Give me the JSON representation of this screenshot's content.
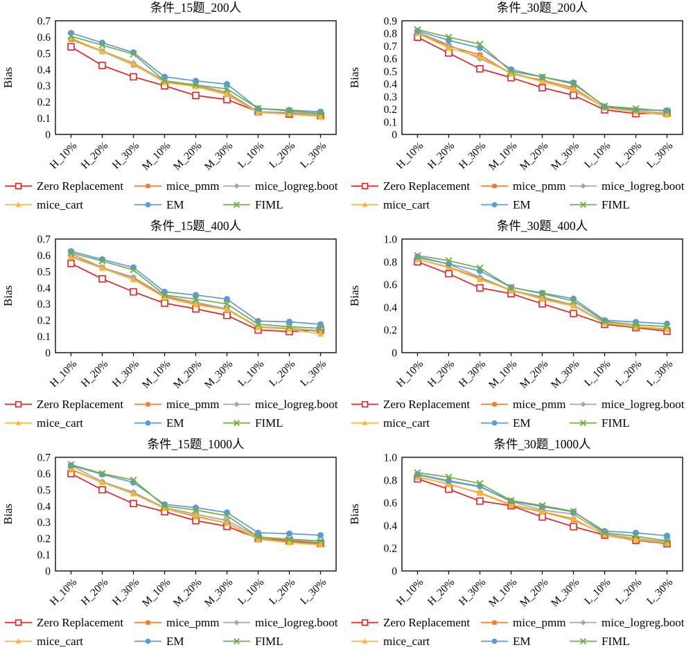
{
  "figure": {
    "ylabel": "Bias"
  },
  "colors": {
    "zero_replacement": "#e32322",
    "mice_pmm": "#ed7d31",
    "mice_logreg_boot": "#a5a5a5",
    "mice_cart": "#f8b830",
    "em": "#5b9bd5",
    "fiml": "#70ad47",
    "axis": "#1a1a1a"
  },
  "legend_items": [
    {
      "key": "zero_replacement",
      "label": "Zero Replacement",
      "marker": "open-square",
      "color": "#e32322"
    },
    {
      "key": "mice_pmm",
      "label": "mice_pmm",
      "marker": "square",
      "color": "#ed7d31"
    },
    {
      "key": "mice_logreg_boot",
      "label": "mice_logreg.boot",
      "marker": "diamond",
      "color": "#a5a5a5"
    },
    {
      "key": "mice_cart",
      "label": "mice_cart",
      "marker": "triangle",
      "color": "#f8b830"
    },
    {
      "key": "em",
      "label": "EM",
      "marker": "circle",
      "color": "#5b9bd5"
    },
    {
      "key": "fiml",
      "label": "FIML",
      "marker": "x",
      "color": "#70ad47"
    }
  ],
  "chart_data": [
    {
      "type": "line",
      "title": "条件_15题_200人",
      "ylabel": "Bias",
      "ylim": [
        0,
        0.7
      ],
      "ytick_labels": [
        "0.7",
        "0.6",
        "0.5",
        "0.4",
        "0.3",
        "0.2",
        "0.1",
        "0"
      ],
      "categories": [
        "H_10%",
        "H_20%",
        "H_30%",
        "M_10%",
        "M_20%",
        "M_30%",
        "L_10%",
        "L_20%",
        "L_30%"
      ],
      "series": [
        {
          "name": "Zero Replacement",
          "key": "zero_replacement",
          "marker": "open-square",
          "values": [
            0.54,
            0.425,
            0.355,
            0.3,
            0.24,
            0.215,
            0.14,
            0.125,
            0.115
          ]
        },
        {
          "name": "mice_pmm",
          "key": "mice_pmm",
          "marker": "square",
          "values": [
            0.585,
            0.51,
            0.43,
            0.325,
            0.3,
            0.25,
            0.135,
            0.13,
            0.115
          ]
        },
        {
          "name": "mice_logreg.boot",
          "key": "mice_logreg_boot",
          "marker": "diamond",
          "values": [
            0.59,
            0.515,
            0.44,
            0.33,
            0.305,
            0.26,
            0.14,
            0.135,
            0.125
          ]
        },
        {
          "name": "mice_cart",
          "key": "mice_cart",
          "marker": "triangle",
          "values": [
            0.595,
            0.51,
            0.435,
            0.32,
            0.295,
            0.245,
            0.135,
            0.125,
            0.11
          ]
        },
        {
          "name": "EM",
          "key": "em",
          "marker": "circle",
          "values": [
            0.625,
            0.565,
            0.505,
            0.355,
            0.33,
            0.31,
            0.16,
            0.15,
            0.14
          ]
        },
        {
          "name": "FIML",
          "key": "fiml",
          "marker": "x",
          "values": [
            0.605,
            0.55,
            0.495,
            0.33,
            0.305,
            0.28,
            0.16,
            0.145,
            0.13
          ]
        }
      ]
    },
    {
      "type": "line",
      "title": "条件_30题_200人",
      "ylabel": "Bias",
      "ylim": [
        0,
        0.9
      ],
      "ytick_labels": [
        "0.9",
        "0.8",
        "0.7",
        "0.6",
        "0.5",
        "0.4",
        "0.3",
        "0.2",
        "0.1",
        "0"
      ],
      "categories": [
        "H_10%",
        "H_20%",
        "H_30%",
        "M_10%",
        "M_20%",
        "M_30%",
        "L_10%",
        "L_20%",
        "L_30%"
      ],
      "series": [
        {
          "name": "Zero Replacement",
          "key": "zero_replacement",
          "marker": "open-square",
          "values": [
            0.77,
            0.645,
            0.52,
            0.45,
            0.37,
            0.31,
            0.195,
            0.165,
            0.17
          ]
        },
        {
          "name": "mice_pmm",
          "key": "mice_pmm",
          "marker": "square",
          "values": [
            0.8,
            0.7,
            0.63,
            0.48,
            0.43,
            0.37,
            0.21,
            0.18,
            0.155
          ]
        },
        {
          "name": "mice_logreg.boot",
          "key": "mice_logreg_boot",
          "marker": "diamond",
          "values": [
            0.81,
            0.71,
            0.6,
            0.49,
            0.42,
            0.35,
            0.215,
            0.185,
            0.17
          ]
        },
        {
          "name": "mice_cart",
          "key": "mice_cart",
          "marker": "triangle",
          "values": [
            0.8,
            0.685,
            0.615,
            0.48,
            0.42,
            0.36,
            0.21,
            0.18,
            0.16
          ]
        },
        {
          "name": "EM",
          "key": "em",
          "marker": "circle",
          "values": [
            0.82,
            0.745,
            0.685,
            0.515,
            0.455,
            0.41,
            0.22,
            0.195,
            0.19
          ]
        },
        {
          "name": "FIML",
          "key": "fiml",
          "marker": "x",
          "values": [
            0.83,
            0.77,
            0.715,
            0.5,
            0.455,
            0.4,
            0.225,
            0.205,
            0.185
          ]
        }
      ]
    },
    {
      "type": "line",
      "title": "条件_15题_400人",
      "ylabel": "Bias",
      "ylim": [
        0,
        0.7
      ],
      "ytick_labels": [
        "0.7",
        "0.6",
        "0.5",
        "0.4",
        "0.3",
        "0.2",
        "0.1",
        "0"
      ],
      "categories": [
        "H_10%",
        "H_20%",
        "H_30%",
        "M_10%",
        "M_20%",
        "M_30%",
        "L_10%",
        "L_20%",
        "L_30%"
      ],
      "series": [
        {
          "name": "Zero Replacement",
          "key": "zero_replacement",
          "marker": "open-square",
          "values": [
            0.55,
            0.455,
            0.375,
            0.305,
            0.27,
            0.23,
            0.14,
            0.13,
            0.14
          ]
        },
        {
          "name": "mice_pmm",
          "key": "mice_pmm",
          "marker": "square",
          "values": [
            0.595,
            0.525,
            0.46,
            0.345,
            0.3,
            0.27,
            0.155,
            0.15,
            0.13
          ]
        },
        {
          "name": "mice_logreg.boot",
          "key": "mice_logreg_boot",
          "marker": "diamond",
          "values": [
            0.61,
            0.525,
            0.465,
            0.35,
            0.31,
            0.27,
            0.16,
            0.15,
            0.135
          ]
        },
        {
          "name": "mice_cart",
          "key": "mice_cart",
          "marker": "triangle",
          "values": [
            0.59,
            0.52,
            0.45,
            0.34,
            0.295,
            0.265,
            0.155,
            0.145,
            0.115
          ]
        },
        {
          "name": "EM",
          "key": "em",
          "marker": "circle",
          "values": [
            0.625,
            0.575,
            0.525,
            0.375,
            0.355,
            0.33,
            0.195,
            0.19,
            0.175
          ]
        },
        {
          "name": "FIML",
          "key": "fiml",
          "marker": "x",
          "values": [
            0.615,
            0.565,
            0.51,
            0.355,
            0.33,
            0.3,
            0.175,
            0.16,
            0.15
          ]
        }
      ]
    },
    {
      "type": "line",
      "title": "条件_30题_400人",
      "ylabel": "Bias",
      "ylim": [
        0,
        1.0
      ],
      "ytick_labels": [
        "1.0",
        "0.8",
        "0.6",
        "0.4",
        "0.2",
        "0"
      ],
      "categories": [
        "H_10%",
        "H_20%",
        "H_30%",
        "M_10%",
        "M_20%",
        "M_30%",
        "L_10%",
        "L_20%",
        "L_30%"
      ],
      "series": [
        {
          "name": "Zero Replacement",
          "key": "zero_replacement",
          "marker": "open-square",
          "values": [
            0.8,
            0.695,
            0.57,
            0.52,
            0.43,
            0.345,
            0.25,
            0.22,
            0.19
          ]
        },
        {
          "name": "mice_pmm",
          "key": "mice_pmm",
          "marker": "square",
          "values": [
            0.82,
            0.755,
            0.655,
            0.545,
            0.48,
            0.42,
            0.26,
            0.225,
            0.205
          ]
        },
        {
          "name": "mice_logreg.boot",
          "key": "mice_logreg_boot",
          "marker": "diamond",
          "values": [
            0.835,
            0.78,
            0.665,
            0.55,
            0.49,
            0.42,
            0.265,
            0.23,
            0.21
          ]
        },
        {
          "name": "mice_cart",
          "key": "mice_cart",
          "marker": "triangle",
          "values": [
            0.82,
            0.75,
            0.645,
            0.55,
            0.47,
            0.41,
            0.26,
            0.23,
            0.205
          ]
        },
        {
          "name": "EM",
          "key": "em",
          "marker": "circle",
          "values": [
            0.845,
            0.78,
            0.72,
            0.575,
            0.525,
            0.475,
            0.285,
            0.27,
            0.255
          ]
        },
        {
          "name": "FIML",
          "key": "fiml",
          "marker": "x",
          "values": [
            0.855,
            0.81,
            0.745,
            0.575,
            0.52,
            0.455,
            0.275,
            0.245,
            0.23
          ]
        }
      ]
    },
    {
      "type": "line",
      "title": "条件_15题_1000人",
      "ylabel": "Bias",
      "ylim": [
        0,
        0.7
      ],
      "ytick_labels": [
        "0.7",
        "0.6",
        "0.5",
        "0.4",
        "0.3",
        "0.2",
        "0.1",
        "0"
      ],
      "categories": [
        "H_10%",
        "H_20%",
        "H_30%",
        "M_10%",
        "M_20%",
        "M_30%",
        "L_10%",
        "L_20%",
        "L_30%"
      ],
      "series": [
        {
          "name": "Zero Replacement",
          "key": "zero_replacement",
          "marker": "open-square",
          "values": [
            0.6,
            0.5,
            0.415,
            0.365,
            0.31,
            0.275,
            0.2,
            0.185,
            0.17
          ]
        },
        {
          "name": "mice_pmm",
          "key": "mice_pmm",
          "marker": "square",
          "values": [
            0.625,
            0.545,
            0.48,
            0.385,
            0.335,
            0.295,
            0.2,
            0.18,
            0.165
          ]
        },
        {
          "name": "mice_logreg.boot",
          "key": "mice_logreg_boot",
          "marker": "diamond",
          "values": [
            0.65,
            0.55,
            0.485,
            0.39,
            0.35,
            0.31,
            0.21,
            0.19,
            0.175
          ]
        },
        {
          "name": "mice_cart",
          "key": "mice_cart",
          "marker": "triangle",
          "values": [
            0.63,
            0.545,
            0.475,
            0.385,
            0.34,
            0.295,
            0.195,
            0.175,
            0.16
          ]
        },
        {
          "name": "EM",
          "key": "em",
          "marker": "circle",
          "values": [
            0.65,
            0.595,
            0.545,
            0.41,
            0.39,
            0.36,
            0.235,
            0.23,
            0.22
          ]
        },
        {
          "name": "FIML",
          "key": "fiml",
          "marker": "x",
          "values": [
            0.655,
            0.6,
            0.56,
            0.4,
            0.375,
            0.34,
            0.21,
            0.195,
            0.185
          ]
        }
      ]
    },
    {
      "type": "line",
      "title": "条件_30题_1000人",
      "ylabel": "Bias",
      "ylim": [
        0,
        1.0
      ],
      "ytick_labels": [
        "1.0",
        "0.8",
        "0.6",
        "0.4",
        "0.2",
        "0"
      ],
      "categories": [
        "H_10%",
        "H_20%",
        "H_30%",
        "M_10%",
        "M_20%",
        "M_30%",
        "L_10%",
        "L_20%",
        "L_30%"
      ],
      "series": [
        {
          "name": "Zero Replacement",
          "key": "zero_replacement",
          "marker": "open-square",
          "values": [
            0.81,
            0.72,
            0.615,
            0.575,
            0.475,
            0.39,
            0.315,
            0.27,
            0.24
          ]
        },
        {
          "name": "mice_pmm",
          "key": "mice_pmm",
          "marker": "square",
          "values": [
            0.825,
            0.765,
            0.685,
            0.58,
            0.52,
            0.45,
            0.32,
            0.275,
            0.245
          ]
        },
        {
          "name": "mice_logreg.boot",
          "key": "mice_logreg_boot",
          "marker": "diamond",
          "values": [
            0.845,
            0.785,
            0.74,
            0.61,
            0.535,
            0.5,
            0.325,
            0.285,
            0.255
          ]
        },
        {
          "name": "mice_cart",
          "key": "mice_cart",
          "marker": "triangle",
          "values": [
            0.83,
            0.76,
            0.69,
            0.585,
            0.525,
            0.46,
            0.315,
            0.275,
            0.245
          ]
        },
        {
          "name": "EM",
          "key": "em",
          "marker": "circle",
          "values": [
            0.85,
            0.795,
            0.745,
            0.615,
            0.565,
            0.52,
            0.35,
            0.335,
            0.31
          ]
        },
        {
          "name": "FIML",
          "key": "fiml",
          "marker": "x",
          "values": [
            0.865,
            0.825,
            0.77,
            0.62,
            0.575,
            0.525,
            0.335,
            0.305,
            0.265
          ]
        }
      ]
    }
  ]
}
